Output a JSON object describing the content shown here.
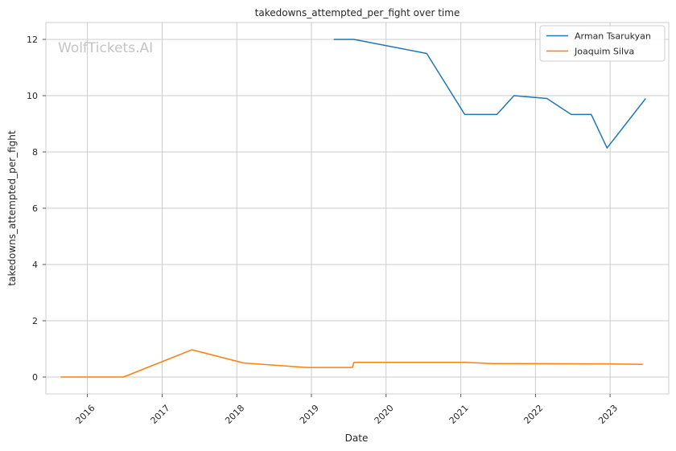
{
  "chart_data": {
    "type": "line",
    "title": "takedowns_attempted_per_fight over time",
    "xlabel": "Date",
    "ylabel": "takedowns_attempted_per_fight",
    "watermark": "WolfTickets.AI",
    "x_ticks": [
      "2016",
      "2017",
      "2018",
      "2019",
      "2020",
      "2021",
      "2022",
      "2023"
    ],
    "y_ticks": [
      "0",
      "2",
      "4",
      "6",
      "8",
      "10",
      "12"
    ],
    "xlim": [
      "2015-06-12",
      "2023-10-15"
    ],
    "ylim": [
      -0.6,
      12.6
    ],
    "grid": true,
    "legend_position": "top-right",
    "series": [
      {
        "name": "Arman Tsarukyan",
        "color": "#1f77b4",
        "x": [
          "2019-04-20",
          "2019-07-27",
          "2020-07-18",
          "2021-01-20",
          "2021-06-26",
          "2021-09-18",
          "2022-02-26",
          "2022-06-25",
          "2022-10-01",
          "2022-12-17",
          "2023-06-24"
        ],
        "y": [
          12.0,
          12.0,
          11.5,
          9.33,
          9.33,
          10.0,
          9.9,
          9.33,
          9.33,
          8.14,
          9.9
        ]
      },
      {
        "name": "Joaquim Silva",
        "color": "#ff7f0e",
        "x": [
          "2015-08-23",
          "2016-06-25",
          "2017-05-27",
          "2018-02-03",
          "2018-12-08",
          "2019-07-20",
          "2019-07-28",
          "2021-01-24",
          "2021-06-05",
          "2022-12-17",
          "2023-06-10"
        ],
        "y": [
          0.0,
          0.0,
          0.97,
          0.5,
          0.34,
          0.34,
          0.52,
          0.52,
          0.48,
          0.47,
          0.45
        ]
      }
    ]
  }
}
